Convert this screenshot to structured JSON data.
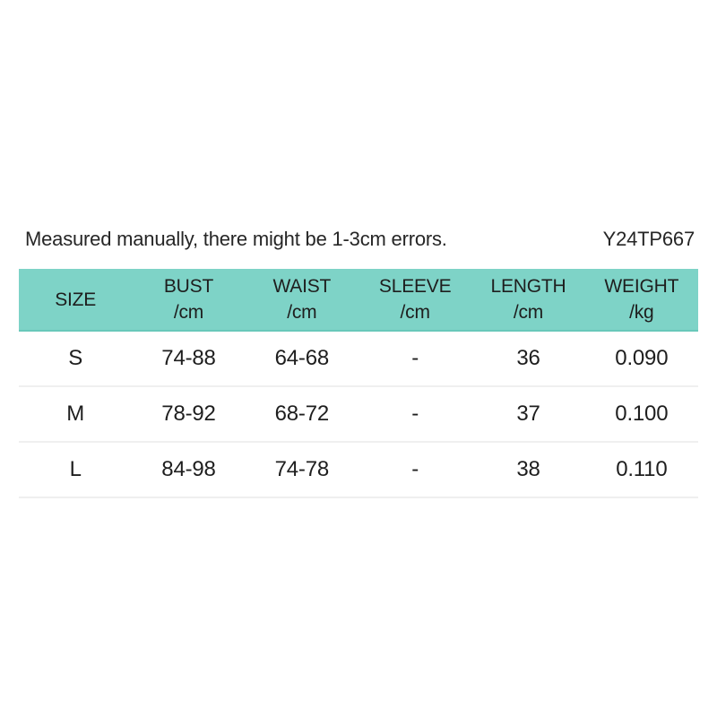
{
  "page": {
    "note": "Measured manually, there might be 1-3cm errors.",
    "product_code": "Y24TP667"
  },
  "size_table": {
    "columns": [
      {
        "label": "SIZE",
        "unit": ""
      },
      {
        "label": "BUST",
        "unit": "/cm"
      },
      {
        "label": "WAIST",
        "unit": "/cm"
      },
      {
        "label": "SLEEVE",
        "unit": "/cm"
      },
      {
        "label": "LENGTH",
        "unit": "/cm"
      },
      {
        "label": "WEIGHT",
        "unit": "/kg"
      }
    ],
    "rows": [
      {
        "size": "S",
        "bust": "74-88",
        "waist": "64-68",
        "sleeve": "-",
        "length": "36",
        "weight": "0.090"
      },
      {
        "size": "M",
        "bust": "78-92",
        "waist": "68-72",
        "sleeve": "-",
        "length": "37",
        "weight": "0.100"
      },
      {
        "size": "L",
        "bust": "84-98",
        "waist": "74-78",
        "sleeve": "-",
        "length": "38",
        "weight": "0.110"
      }
    ]
  },
  "colors": {
    "header_bg": "#7ed3c7",
    "header_border": "#68c8ba",
    "row_divider": "#efefef",
    "text_primary": "#262626"
  }
}
